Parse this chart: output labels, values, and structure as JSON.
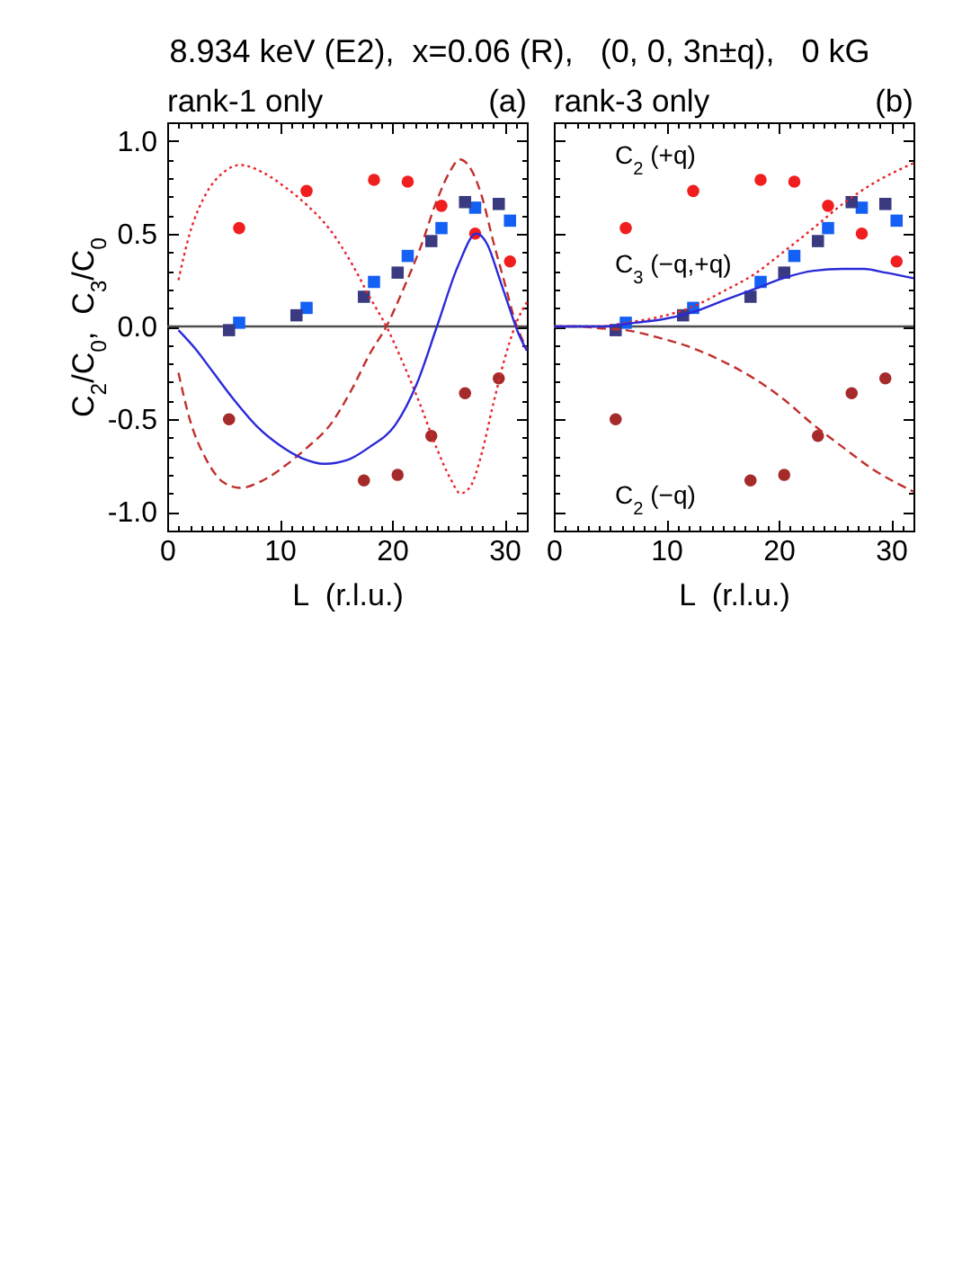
{
  "chart_data": [
    {
      "type": "scatter",
      "title": "8.934 keV (E2),  x=0.06 (R),   (0, 0, 3n±q),   0 kG",
      "subtitle": "rank-1 only",
      "xlabel": "L  (r.l.u.)",
      "ylabel": "C$_{2}$/C$_{0}$,  C$_{3}$/C$_{0}$",
      "annotations": [
        "(a)"
      ],
      "xlim": [
        0,
        32
      ],
      "xticks": [
        0,
        {
          "value": 1,
          "label": null
        },
        {
          "value": 2,
          "label": null
        },
        {
          "value": 3,
          "label": null
        },
        {
          "value": 4,
          "label": null
        },
        {
          "value": 5,
          "label": null
        },
        {
          "value": 6,
          "label": null
        },
        {
          "value": 7,
          "label": null
        },
        {
          "value": 8,
          "label": null
        },
        {
          "value": 9,
          "label": null
        },
        10,
        {
          "value": 11,
          "label": null
        },
        {
          "value": 12,
          "label": null
        },
        {
          "value": 13,
          "label": null
        },
        {
          "value": 14,
          "label": null
        },
        {
          "value": 15,
          "label": null
        },
        {
          "value": 16,
          "label": null
        },
        {
          "value": 17,
          "label": null
        },
        {
          "value": 18,
          "label": null
        },
        {
          "value": 19,
          "label": null
        },
        20,
        {
          "value": 21,
          "label": null
        },
        {
          "value": 22,
          "label": null
        },
        {
          "value": 23,
          "label": null
        },
        {
          "value": 24,
          "label": null
        },
        {
          "value": 25,
          "label": null
        },
        {
          "value": 26,
          "label": null
        },
        {
          "value": 27,
          "label": null
        },
        {
          "value": 28,
          "label": null
        },
        {
          "value": 29,
          "label": null
        },
        30,
        {
          "value": 31,
          "label": null
        }
      ],
      "ylim": [
        -1.1,
        1.1
      ],
      "yticks": [
        {
          "value": -1,
          "label": "-1.0"
        },
        {
          "value": -0.9,
          "label": null
        },
        {
          "value": -0.8,
          "label": null
        },
        {
          "value": -0.7,
          "label": null
        },
        {
          "value": -0.6,
          "label": null
        },
        {
          "value": -0.5,
          "label": "-0.5"
        },
        {
          "value": -0.4,
          "label": null
        },
        {
          "value": -0.3,
          "label": null
        },
        {
          "value": -0.2,
          "label": null
        },
        {
          "value": -0.1,
          "label": null
        },
        {
          "value": 0,
          "label": "0.0"
        },
        {
          "value": 0.1,
          "label": null
        },
        {
          "value": 0.2,
          "label": null
        },
        {
          "value": 0.3,
          "label": null
        },
        {
          "value": 0.4,
          "label": null
        },
        {
          "value": 0.5,
          "label": "0.5"
        },
        {
          "value": 0.6,
          "label": null
        },
        {
          "value": 0.7,
          "label": null
        },
        {
          "value": 0.8,
          "label": null
        },
        {
          "value": 0.9,
          "label": null
        },
        {
          "value": 1,
          "label": "1.0"
        }
      ],
      "ref_lines": [
        {
          "axis": "y",
          "value": 0,
          "color": "#4d4d4d"
        }
      ],
      "series": [
        {
          "type": "scatter",
          "marker": "circle",
          "color": "#f01e1e",
          "x": [
            6.4,
            12.4,
            18.4,
            21.4,
            24.4,
            27.4,
            30.5
          ],
          "values": [
            0.53,
            0.73,
            0.79,
            0.78,
            0.65,
            0.5,
            0.35
          ]
        },
        {
          "type": "scatter",
          "marker": "circle",
          "color": "#a52a2a",
          "x": [
            5.5,
            17.5,
            20.5,
            23.5,
            26.5,
            29.5
          ],
          "values": [
            -0.5,
            -0.83,
            -0.8,
            -0.59,
            -0.36,
            -0.28
          ]
        },
        {
          "type": "scatter",
          "marker": "square",
          "color": "#1460f5",
          "x": [
            6.4,
            12.4,
            18.4,
            21.4,
            24.4,
            27.4,
            30.5
          ],
          "values": [
            0.02,
            0.1,
            0.24,
            0.38,
            0.53,
            0.64,
            0.57
          ]
        },
        {
          "type": "scatter",
          "marker": "square",
          "color": "#3a3a80",
          "x": [
            5.5,
            11.5,
            17.5,
            20.5,
            23.5,
            26.5,
            29.5
          ],
          "values": [
            -0.02,
            0.06,
            0.16,
            0.29,
            0.46,
            0.67,
            0.66
          ]
        },
        {
          "type": "line",
          "line_style": "dotted",
          "color": "#e8242a",
          "x": [
            1,
            2,
            3.5,
            5,
            6.5,
            8.5,
            10.5,
            12.5,
            14.5,
            16.5,
            18,
            19.5,
            21,
            22.5,
            24,
            25.2,
            26.1,
            27,
            28,
            29,
            30,
            31,
            32
          ],
          "values": [
            0.25,
            0.5,
            0.72,
            0.83,
            0.87,
            0.83,
            0.75,
            0.65,
            0.52,
            0.33,
            0.16,
            0,
            -0.2,
            -0.42,
            -0.66,
            -0.82,
            -0.9,
            -0.86,
            -0.68,
            -0.42,
            -0.18,
            0.01,
            0.13
          ]
        },
        {
          "type": "line",
          "line_style": "dashed",
          "color": "#c0302c",
          "x": [
            1,
            2,
            3.5,
            5,
            6.5,
            8.5,
            10.5,
            12.5,
            14.5,
            16.5,
            18,
            19.5,
            21,
            22.5,
            24,
            25.2,
            26,
            27,
            28,
            29,
            30,
            31,
            32
          ],
          "values": [
            -0.25,
            -0.5,
            -0.72,
            -0.84,
            -0.87,
            -0.83,
            -0.75,
            -0.65,
            -0.53,
            -0.33,
            -0.15,
            0,
            0.2,
            0.42,
            0.68,
            0.84,
            0.9,
            0.85,
            0.7,
            0.46,
            0.24,
            0.02,
            -0.12
          ]
        },
        {
          "type": "line",
          "line_style": "solid",
          "color": "#2a2ad8",
          "x": [
            1,
            2.5,
            4,
            6,
            8,
            10,
            12,
            14,
            16,
            18,
            20.3,
            22.2,
            24,
            25.9,
            27.5,
            28.5,
            29.5,
            30.5,
            31.2,
            32
          ],
          "values": [
            -0.02,
            -0.12,
            -0.24,
            -0.4,
            -0.54,
            -0.64,
            -0.71,
            -0.74,
            -0.72,
            -0.65,
            -0.53,
            -0.31,
            0,
            0.33,
            0.5,
            0.44,
            0.27,
            0.09,
            -0.03,
            -0.13
          ]
        }
      ]
    },
    {
      "type": "scatter",
      "subtitle": "rank-3 only",
      "xlabel": "L  (r.l.u.)",
      "tick_labels": "x",
      "annotations": [
        "(b)",
        "C$_{2}$ (+q)",
        "C$_{3}$ (−q,+q)",
        "C$_{2}$ (−q)"
      ],
      "xlim": [
        0,
        32
      ],
      "xticks": [
        0,
        {
          "value": 1,
          "label": null
        },
        {
          "value": 2,
          "label": null
        },
        {
          "value": 3,
          "label": null
        },
        {
          "value": 4,
          "label": null
        },
        {
          "value": 5,
          "label": null
        },
        {
          "value": 6,
          "label": null
        },
        {
          "value": 7,
          "label": null
        },
        {
          "value": 8,
          "label": null
        },
        {
          "value": 9,
          "label": null
        },
        10,
        {
          "value": 11,
          "label": null
        },
        {
          "value": 12,
          "label": null
        },
        {
          "value": 13,
          "label": null
        },
        {
          "value": 14,
          "label": null
        },
        {
          "value": 15,
          "label": null
        },
        {
          "value": 16,
          "label": null
        },
        {
          "value": 17,
          "label": null
        },
        {
          "value": 18,
          "label": null
        },
        {
          "value": 19,
          "label": null
        },
        20,
        {
          "value": 21,
          "label": null
        },
        {
          "value": 22,
          "label": null
        },
        {
          "value": 23,
          "label": null
        },
        {
          "value": 24,
          "label": null
        },
        {
          "value": 25,
          "label": null
        },
        {
          "value": 26,
          "label": null
        },
        {
          "value": 27,
          "label": null
        },
        {
          "value": 28,
          "label": null
        },
        {
          "value": 29,
          "label": null
        },
        30,
        {
          "value": 31,
          "label": null
        }
      ],
      "ylim": [
        -1.1,
        1.1
      ],
      "yticks": [
        -1,
        {
          "value": -0.9,
          "label": null
        },
        {
          "value": -0.8,
          "label": null
        },
        {
          "value": -0.7,
          "label": null
        },
        {
          "value": -0.6,
          "label": null
        },
        -0.5,
        {
          "value": -0.4,
          "label": null
        },
        {
          "value": -0.3,
          "label": null
        },
        {
          "value": -0.2,
          "label": null
        },
        {
          "value": -0.1,
          "label": null
        },
        0,
        {
          "value": 0.1,
          "label": null
        },
        {
          "value": 0.2,
          "label": null
        },
        {
          "value": 0.3,
          "label": null
        },
        {
          "value": 0.4,
          "label": null
        },
        0.5,
        {
          "value": 0.6,
          "label": null
        },
        {
          "value": 0.7,
          "label": null
        },
        {
          "value": 0.8,
          "label": null
        },
        {
          "value": 0.9,
          "label": null
        },
        1
      ],
      "ref_lines": [
        {
          "axis": "y",
          "value": 0,
          "color": "#4d4d4d"
        }
      ],
      "series": [
        {
          "type": "scatter",
          "marker": "circle",
          "color": "#f01e1e",
          "x": [
            6.4,
            12.4,
            18.4,
            21.4,
            24.4,
            27.4,
            30.5
          ],
          "values": [
            0.53,
            0.73,
            0.79,
            0.78,
            0.65,
            0.5,
            0.35
          ]
        },
        {
          "type": "scatter",
          "marker": "circle",
          "color": "#a52a2a",
          "x": [
            5.5,
            17.5,
            20.5,
            23.5,
            26.5,
            29.5
          ],
          "values": [
            -0.5,
            -0.83,
            -0.8,
            -0.59,
            -0.36,
            -0.28
          ]
        },
        {
          "type": "scatter",
          "marker": "square",
          "color": "#1460f5",
          "x": [
            6.4,
            12.4,
            18.4,
            21.4,
            24.4,
            27.4,
            30.5
          ],
          "values": [
            0.02,
            0.1,
            0.24,
            0.38,
            0.53,
            0.64,
            0.57
          ]
        },
        {
          "type": "scatter",
          "marker": "square",
          "color": "#3a3a80",
          "x": [
            5.5,
            11.5,
            17.5,
            20.5,
            23.5,
            26.5,
            29.5
          ],
          "values": [
            -0.02,
            0.06,
            0.16,
            0.29,
            0.46,
            0.67,
            0.66
          ]
        },
        {
          "type": "line",
          "line_style": "dotted",
          "color": "#e8242a",
          "x": [
            0,
            2,
            4,
            6.4,
            9.3,
            12.5,
            15.1,
            17.8,
            20.4,
            23.1,
            25.7,
            28.4,
            32
          ],
          "values": [
            0,
            0,
            0,
            0.02,
            0.05,
            0.11,
            0.19,
            0.28,
            0.4,
            0.53,
            0.66,
            0.77,
            0.88
          ]
        },
        {
          "type": "line",
          "line_style": "dashed",
          "color": "#c0302c",
          "x": [
            0,
            2,
            4,
            6.4,
            9.3,
            12.5,
            15.1,
            17.8,
            20.4,
            23.1,
            25.7,
            28.4,
            32
          ],
          "values": [
            0,
            0,
            -0.01,
            -0.02,
            -0.06,
            -0.12,
            -0.19,
            -0.28,
            -0.39,
            -0.53,
            -0.65,
            -0.77,
            -0.89
          ]
        },
        {
          "type": "line",
          "line_style": "solid",
          "color": "#2a2ad8",
          "x": [
            0,
            2,
            4.5,
            7.2,
            9.8,
            12.5,
            15.1,
            17.8,
            20.4,
            23.1,
            25.7,
            27.6,
            29.5,
            32
          ],
          "values": [
            0,
            0,
            0,
            0.02,
            0.04,
            0.08,
            0.14,
            0.2,
            0.26,
            0.3,
            0.31,
            0.31,
            0.29,
            0.26
          ]
        }
      ]
    }
  ]
}
